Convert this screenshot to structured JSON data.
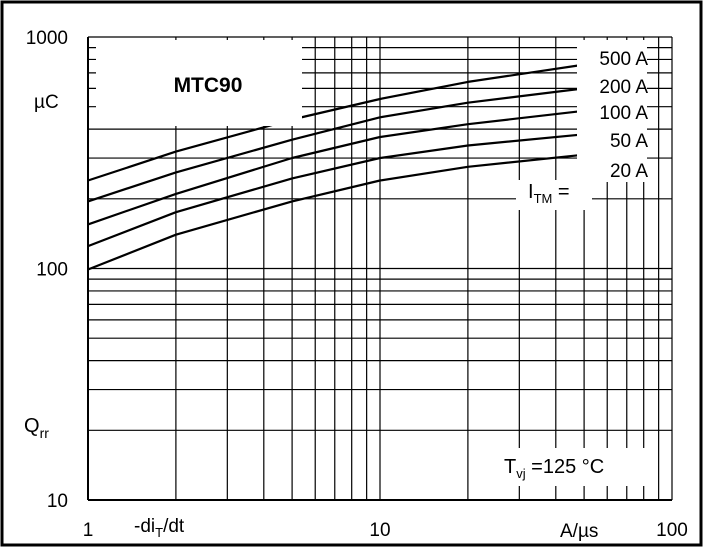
{
  "chart_data": {
    "type": "line",
    "title": "MTC90",
    "x_scale": "log",
    "y_scale": "log",
    "xlim": [
      1,
      100
    ],
    "ylim": [
      10,
      1000
    ],
    "x_ticks": [
      "1",
      "10",
      "100"
    ],
    "y_ticks": [
      "1000",
      "100",
      "10"
    ],
    "x_quantity": "-di",
    "x_quantity_sub": "T",
    "x_quantity_tail": "/dt",
    "x_unit": "A/µs",
    "y_quantity": "Q",
    "y_quantity_sub": "rr",
    "y_unit": "µC",
    "legend_title": "I",
    "legend_title_sub": "TM",
    "legend_title_tail": " =",
    "condition": "T",
    "condition_sub": "vj",
    "condition_tail": " =125 °C",
    "grid": true,
    "series": [
      {
        "name": "500 A",
        "x": [
          1,
          2,
          5,
          10,
          20,
          50
        ],
        "y": [
          240,
          320,
          440,
          540,
          640,
          760
        ]
      },
      {
        "name": "200 A",
        "x": [
          1,
          2,
          5,
          10,
          20,
          50
        ],
        "y": [
          195,
          260,
          360,
          450,
          520,
          600
        ]
      },
      {
        "name": "100 A",
        "x": [
          1,
          2,
          5,
          10,
          20,
          50
        ],
        "y": [
          155,
          210,
          300,
          370,
          420,
          480
        ]
      },
      {
        "name": "50 A",
        "x": [
          1,
          2,
          5,
          10,
          20,
          50
        ],
        "y": [
          125,
          175,
          245,
          300,
          340,
          380
        ]
      },
      {
        "name": "20 A",
        "x": [
          1,
          2,
          5,
          10,
          20,
          50
        ],
        "y": [
          99,
          140,
          195,
          240,
          275,
          310
        ]
      }
    ]
  }
}
